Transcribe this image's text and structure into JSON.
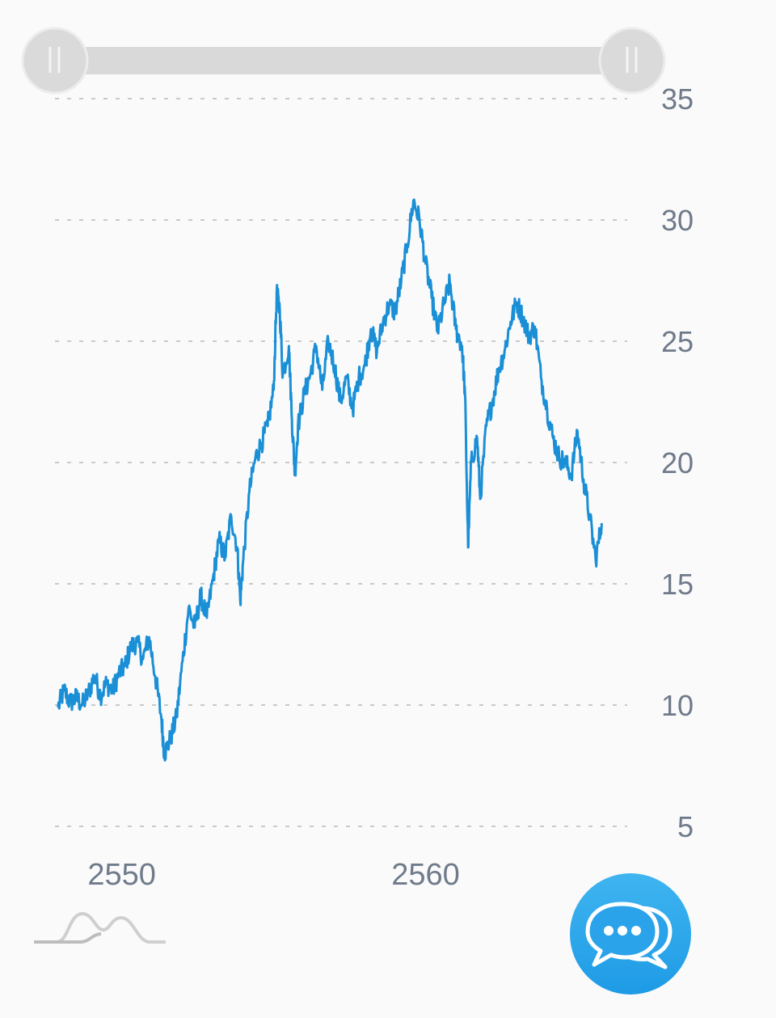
{
  "chart_data": {
    "type": "line",
    "title": "",
    "xlabel": "",
    "ylabel": "",
    "xlim": [
      2547.8,
      2566.8
    ],
    "ylim": [
      5,
      35
    ],
    "y_ticks": [
      "35",
      "30",
      "25",
      "20",
      "15",
      "10",
      "5"
    ],
    "x_ticks": [
      "2550",
      "2560"
    ],
    "grid": true,
    "line_color": "#1a8fd6",
    "series": [
      {
        "values": [
          [
            2547.9,
            9.9
          ],
          [
            2548.1,
            10.6
          ],
          [
            2548.3,
            10.1
          ],
          [
            2548.5,
            10.3
          ],
          [
            2548.7,
            10.0
          ],
          [
            2548.9,
            10.5
          ],
          [
            2549.1,
            11.2
          ],
          [
            2549.3,
            10.4
          ],
          [
            2549.5,
            10.9
          ],
          [
            2549.7,
            10.6
          ],
          [
            2549.9,
            11.3
          ],
          [
            2550.1,
            11.6
          ],
          [
            2550.3,
            12.4
          ],
          [
            2550.5,
            12.6
          ],
          [
            2550.7,
            11.9
          ],
          [
            2550.9,
            12.8
          ],
          [
            2551.1,
            11.2
          ],
          [
            2551.3,
            9.5
          ],
          [
            2551.4,
            8.0
          ],
          [
            2551.6,
            8.6
          ],
          [
            2551.8,
            9.5
          ],
          [
            2552.0,
            11.8
          ],
          [
            2552.2,
            14.0
          ],
          [
            2552.4,
            13.2
          ],
          [
            2552.6,
            14.5
          ],
          [
            2552.8,
            13.6
          ],
          [
            2553.0,
            15.2
          ],
          [
            2553.2,
            16.8
          ],
          [
            2553.4,
            16.1
          ],
          [
            2553.6,
            17.8
          ],
          [
            2553.8,
            16.5
          ],
          [
            2553.9,
            14.3
          ],
          [
            2554.0,
            16.0
          ],
          [
            2554.2,
            18.8
          ],
          [
            2554.4,
            20.2
          ],
          [
            2554.6,
            20.8
          ],
          [
            2554.8,
            21.5
          ],
          [
            2555.0,
            23.0
          ],
          [
            2555.1,
            27.0
          ],
          [
            2555.2,
            26.3
          ],
          [
            2555.3,
            23.6
          ],
          [
            2555.5,
            24.8
          ],
          [
            2555.6,
            21.8
          ],
          [
            2555.7,
            19.5
          ],
          [
            2555.8,
            21.5
          ],
          [
            2556.0,
            22.8
          ],
          [
            2556.2,
            23.6
          ],
          [
            2556.4,
            24.8
          ],
          [
            2556.6,
            23.0
          ],
          [
            2556.8,
            25.0
          ],
          [
            2557.0,
            24.0
          ],
          [
            2557.2,
            22.5
          ],
          [
            2557.4,
            23.5
          ],
          [
            2557.6,
            22.2
          ],
          [
            2557.8,
            23.5
          ],
          [
            2558.0,
            24.0
          ],
          [
            2558.2,
            25.5
          ],
          [
            2558.4,
            24.6
          ],
          [
            2558.6,
            25.8
          ],
          [
            2558.8,
            26.5
          ],
          [
            2559.0,
            26.2
          ],
          [
            2559.2,
            27.5
          ],
          [
            2559.4,
            29.0
          ],
          [
            2559.6,
            30.8
          ],
          [
            2559.8,
            30.0
          ],
          [
            2560.0,
            28.2
          ],
          [
            2560.2,
            26.8
          ],
          [
            2560.4,
            25.4
          ],
          [
            2560.6,
            26.5
          ],
          [
            2560.8,
            27.4
          ],
          [
            2561.0,
            25.5
          ],
          [
            2561.2,
            24.8
          ],
          [
            2561.3,
            22.8
          ],
          [
            2561.4,
            16.5
          ],
          [
            2561.5,
            20.0
          ],
          [
            2561.7,
            21.0
          ],
          [
            2561.8,
            18.5
          ],
          [
            2562.0,
            21.5
          ],
          [
            2562.2,
            22.5
          ],
          [
            2562.4,
            23.8
          ],
          [
            2562.6,
            24.6
          ],
          [
            2562.8,
            25.8
          ],
          [
            2563.0,
            26.6
          ],
          [
            2563.2,
            26.0
          ],
          [
            2563.4,
            25.2
          ],
          [
            2563.6,
            25.6
          ],
          [
            2563.8,
            23.5
          ],
          [
            2564.0,
            22.2
          ],
          [
            2564.2,
            21.0
          ],
          [
            2564.4,
            20.2
          ],
          [
            2564.6,
            20.0
          ],
          [
            2564.8,
            19.5
          ],
          [
            2565.0,
            21.3
          ],
          [
            2565.2,
            19.3
          ],
          [
            2565.4,
            17.8
          ],
          [
            2565.6,
            16.0
          ],
          [
            2565.8,
            17.5
          ]
        ]
      }
    ]
  },
  "icons": {
    "range_handle": "grip-handle-icon",
    "chart_toggle": "distribution-curve-icon",
    "chat": "chat-bubbles-icon"
  }
}
